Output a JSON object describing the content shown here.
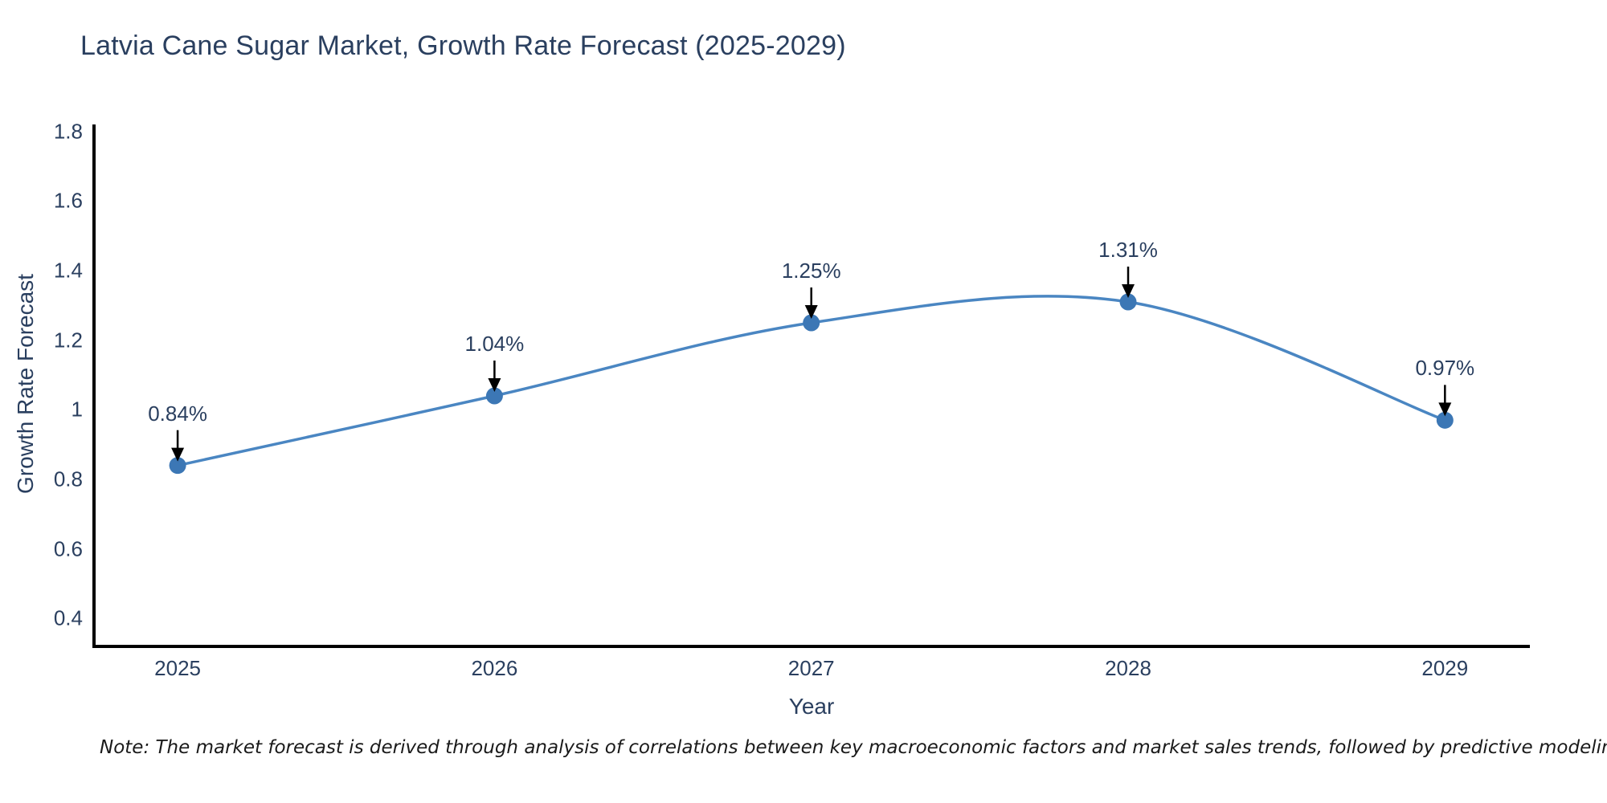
{
  "chart": {
    "title": "Latvia Cane Sugar Market, Growth Rate Forecast (2025-2029)",
    "xlabel": "Year",
    "ylabel": "Growth Rate Forecast",
    "note": "Note: The market forecast is derived through analysis of correlations between key macroeconomic factors and market sales trends, followed by predictive modeling to project future sales"
  },
  "chart_data": {
    "type": "line",
    "title": "Latvia Cane Sugar Market, Growth Rate Forecast (2025-2029)",
    "xlabel": "Year",
    "ylabel": "Growth Rate Forecast",
    "x": [
      2025,
      2026,
      2027,
      2028,
      2029
    ],
    "values": [
      0.84,
      1.04,
      1.25,
      1.31,
      0.97
    ],
    "point_labels": [
      "0.84%",
      "1.04%",
      "1.25%",
      "1.31%",
      "0.97%"
    ],
    "x_tick_labels": [
      "2025",
      "2026",
      "2027",
      "2028",
      "2029"
    ],
    "y_tick_values": [
      0.4,
      0.6,
      0.8,
      1,
      1.2,
      1.4,
      1.6,
      1.8
    ],
    "y_tick_labels": [
      "0.4",
      "0.6",
      "0.8",
      "1",
      "1.2",
      "1.4",
      "1.6",
      "1.8"
    ],
    "xlim": [
      2024.736,
      2029.268
    ],
    "ylim": [
      0.32,
      1.82
    ],
    "line_shape": "spline",
    "grid": false,
    "legend": "none",
    "line_color": "#4a86c2",
    "marker_color": "#3c77b5",
    "axis_color": "#000000",
    "text_color": "#2a3f5f",
    "arrow_color": "#000000",
    "note": "Note: The market forecast is derived through analysis of correlations between key macroeconomic factors and market sales trends, followed by predictive modeling to project future sales"
  }
}
